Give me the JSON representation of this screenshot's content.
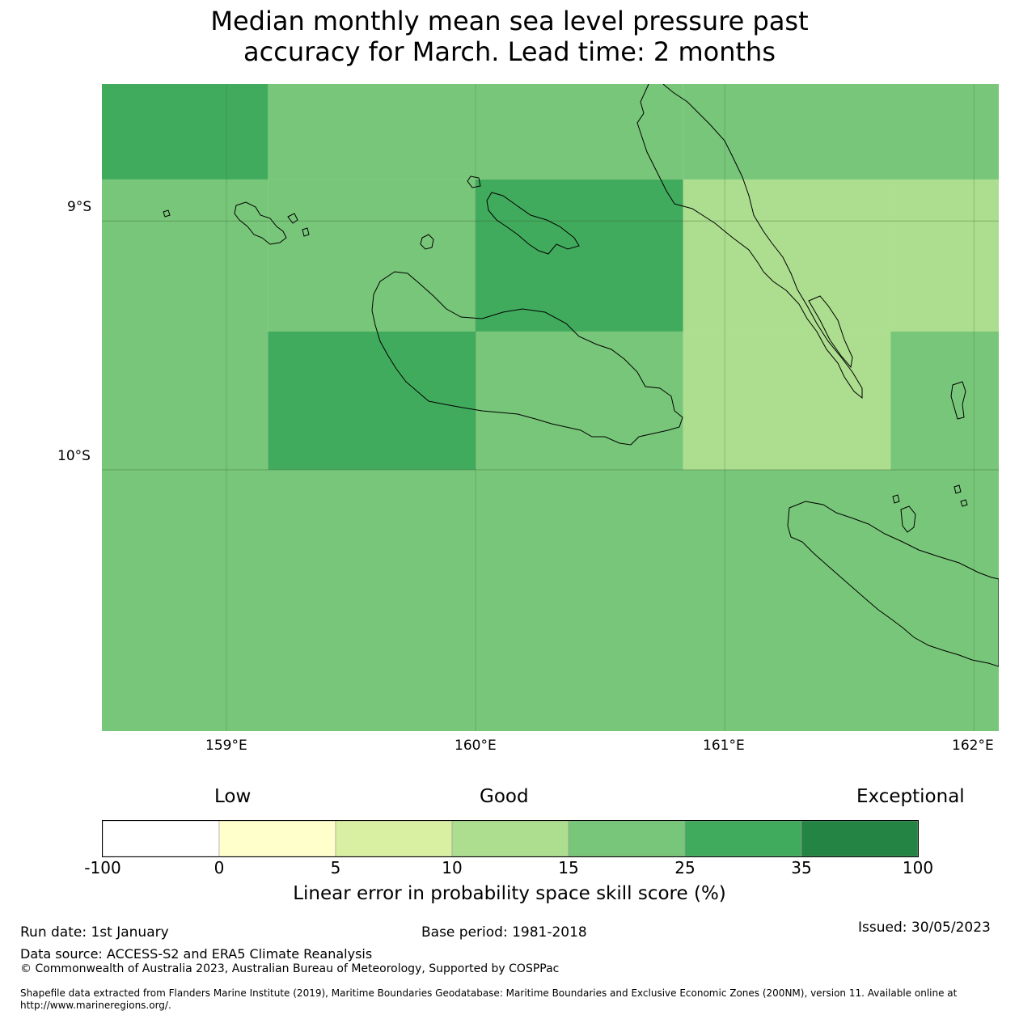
{
  "title": {
    "line1": "Median monthly mean sea level pressure past",
    "line2": "accuracy for March. Lead time: 2 months"
  },
  "map": {
    "lon_range": [
      158.5,
      162.1
    ],
    "lat_range": [
      -8.45,
      -11.05
    ],
    "cells": [
      {
        "lon": [
          158.5,
          159.1667
        ],
        "lat": [
          -8.45,
          -8.8333
        ],
        "value": 30
      },
      {
        "lon": [
          159.1667,
          160.0
        ],
        "lat": [
          -8.45,
          -8.8333
        ],
        "value": 20
      },
      {
        "lon": [
          160.0,
          160.8333
        ],
        "lat": [
          -8.45,
          -8.8333
        ],
        "value": 20
      },
      {
        "lon": [
          160.8333,
          161.6667
        ],
        "lat": [
          -8.45,
          -8.8333
        ],
        "value": 20
      },
      {
        "lon": [
          161.6667,
          162.1
        ],
        "lat": [
          -8.45,
          -8.8333
        ],
        "value": 20
      },
      {
        "lon": [
          158.5,
          159.1667
        ],
        "lat": [
          -8.8333,
          -9.4444
        ],
        "value": 20
      },
      {
        "lon": [
          159.1667,
          160.0
        ],
        "lat": [
          -8.8333,
          -9.4444
        ],
        "value": 20
      },
      {
        "lon": [
          160.0,
          160.8333
        ],
        "lat": [
          -8.8333,
          -9.4444
        ],
        "value": 30
      },
      {
        "lon": [
          160.8333,
          161.6667
        ],
        "lat": [
          -8.8333,
          -9.4444
        ],
        "value": 12
      },
      {
        "lon": [
          161.6667,
          162.1
        ],
        "lat": [
          -8.8333,
          -9.4444
        ],
        "value": 12
      },
      {
        "lon": [
          158.5,
          159.1667
        ],
        "lat": [
          -9.4444,
          -10.0
        ],
        "value": 20
      },
      {
        "lon": [
          159.1667,
          160.0
        ],
        "lat": [
          -9.4444,
          -10.0
        ],
        "value": 30
      },
      {
        "lon": [
          160.0,
          160.8333
        ],
        "lat": [
          -9.4444,
          -10.0
        ],
        "value": 20
      },
      {
        "lon": [
          160.8333,
          161.6667
        ],
        "lat": [
          -9.4444,
          -10.0
        ],
        "value": 12
      },
      {
        "lon": [
          161.6667,
          162.1
        ],
        "lat": [
          -9.4444,
          -10.0
        ],
        "value": 20
      },
      {
        "lon": [
          158.5,
          162.1
        ],
        "lat": [
          -10.0,
          -11.05
        ],
        "value": 20
      }
    ],
    "x_ticks": [
      {
        "lon": 159,
        "label": "159°E"
      },
      {
        "lon": 160,
        "label": "160°E"
      },
      {
        "lon": 161,
        "label": "161°E"
      },
      {
        "lon": 162,
        "label": "162°E"
      }
    ],
    "y_ticks": [
      {
        "lat": -9,
        "label": "9°S"
      },
      {
        "lat": -10,
        "label": "10°S"
      }
    ]
  },
  "colorbar": {
    "category_low": "Low",
    "category_good": "Good",
    "category_exceptional": "Exceptional",
    "boundaries": [
      "-100",
      "0",
      "5",
      "10",
      "15",
      "25",
      "35",
      "100"
    ],
    "colors": [
      "#ffffff",
      "#ffffcc",
      "#d9f0a3",
      "#addd8e",
      "#78c679",
      "#41ab5d",
      "#238443"
    ],
    "label": "Linear error in probability space skill score (%)"
  },
  "footer": {
    "run_date": "Run date: 1st January",
    "base_period": "Base period: 1981-2018",
    "issued": "Issued: 30/05/2023",
    "data_source": "Data source: ACCESS-S2 and ERA5 Climate Reanalysis",
    "copyright": "© Commonwealth of Australia 2023, Australian Bureau of Meteorology, Supported by COSPPac",
    "shapefile_line1": "Shapefile data extracted from Flanders Marine Institute (2019), Maritime Boundaries Geodatabase: Maritime Boundaries and Exclusive Economic Zones (200NM), version 11. Available online at",
    "shapefile_line2": "http://www.marineregions.org/."
  }
}
